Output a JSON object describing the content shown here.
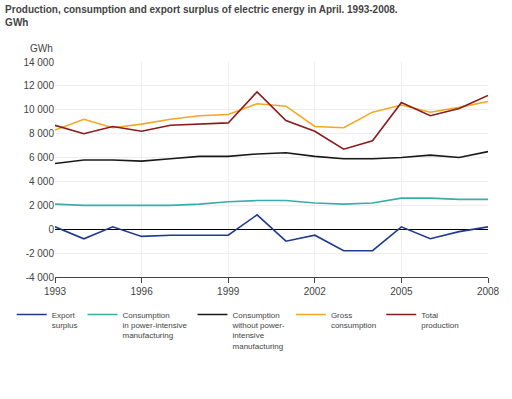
{
  "chart_data": {
    "type": "line",
    "title": "Production, consumption and export surplus of electric energy in April. 1993-2008.",
    "subtitle": "GWh",
    "ylabel": "GWh",
    "x": [
      1993,
      1994,
      1995,
      1996,
      1997,
      1998,
      1999,
      2000,
      2001,
      2002,
      2003,
      2004,
      2005,
      2006,
      2007,
      2008
    ],
    "series": [
      {
        "name": "Export\nsurplus",
        "color": "#1f3a8f",
        "values": [
          200,
          -800,
          200,
          -600,
          -500,
          -500,
          -500,
          1200,
          -1000,
          -500,
          -1800,
          -1800,
          200,
          -800,
          -200,
          200
        ]
      },
      {
        "name": "Consumption\nin power-intensive\nmanufacturing",
        "color": "#3aada8",
        "values": [
          2100,
          2000,
          2000,
          2000,
          2000,
          2100,
          2300,
          2400,
          2400,
          2200,
          2100,
          2200,
          2600,
          2600,
          2500,
          2500
        ]
      },
      {
        "name": "Consumption\nwithout power-\nintensive\nmanufacturing",
        "color": "#1a1a1a",
        "values": [
          5500,
          5800,
          5800,
          5700,
          5900,
          6100,
          6100,
          6300,
          6400,
          6100,
          5900,
          5900,
          6000,
          6200,
          6000,
          6500
        ]
      },
      {
        "name": "Gross\nconsumption",
        "color": "#f5a623",
        "values": [
          8300,
          9200,
          8500,
          8800,
          9200,
          9500,
          9600,
          10500,
          10300,
          8600,
          8500,
          9800,
          10400,
          9800,
          10200,
          10700
        ]
      },
      {
        "name": "Total\nproduction",
        "color": "#8b1a1a",
        "values": [
          8700,
          8000,
          8600,
          8200,
          8700,
          8800,
          8900,
          11500,
          9100,
          8200,
          6700,
          7400,
          10600,
          9500,
          10100,
          11200
        ]
      }
    ],
    "xlim": [
      1993,
      2008
    ],
    "xticks": [
      1993,
      1996,
      1999,
      2002,
      2005,
      2008
    ],
    "ylim": [
      -4000,
      14000
    ],
    "yticks": [
      {
        "value": -4000,
        "label": "-4 000"
      },
      {
        "value": -2000,
        "label": "-2 000"
      },
      0,
      {
        "value": 2000,
        "label": "2 000"
      },
      {
        "value": 4000,
        "label": "4 000"
      },
      {
        "value": 6000,
        "label": "6 000"
      },
      {
        "value": 8000,
        "label": "8 000"
      },
      {
        "value": 10000,
        "label": "10 000"
      },
      {
        "value": 12000,
        "label": "12 000"
      },
      {
        "value": 14000,
        "label": "14 000"
      }
    ],
    "grid": true,
    "legend": "bottom"
  }
}
